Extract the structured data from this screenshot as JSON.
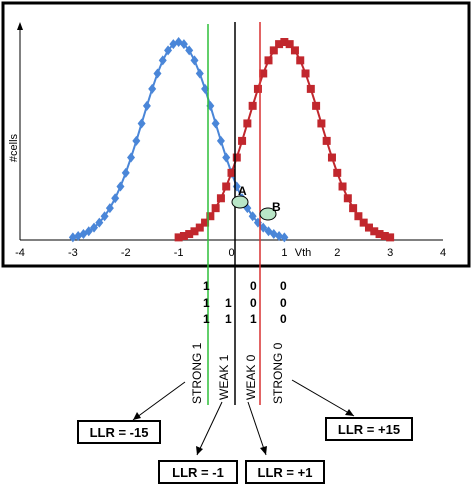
{
  "chart": {
    "y_axis_label": "#cells",
    "x_axis_label": "Vth",
    "x_ticks": [
      "-4",
      "-3",
      "-2",
      "-1",
      "0",
      "1",
      "2",
      "3",
      "4"
    ],
    "point_a_label": "A",
    "point_b_label": "B",
    "colors": {
      "erased": "#4a86d8",
      "programmed": "#c1272d",
      "green_line": "#2fbf3a",
      "red_line": "#d93030"
    }
  },
  "bit_rows": [
    [
      "1",
      "0",
      "0"
    ],
    [
      "1",
      "1",
      "0",
      "0"
    ],
    [
      "1",
      "1",
      "1",
      "0"
    ]
  ],
  "regions": [
    "STRONG 1",
    "WEAK 1",
    "WEAK 0",
    "STRONG 0"
  ],
  "llr": [
    "LLR = -15",
    "LLR = -1",
    "LLR = +1",
    "LLR = +15"
  ]
}
